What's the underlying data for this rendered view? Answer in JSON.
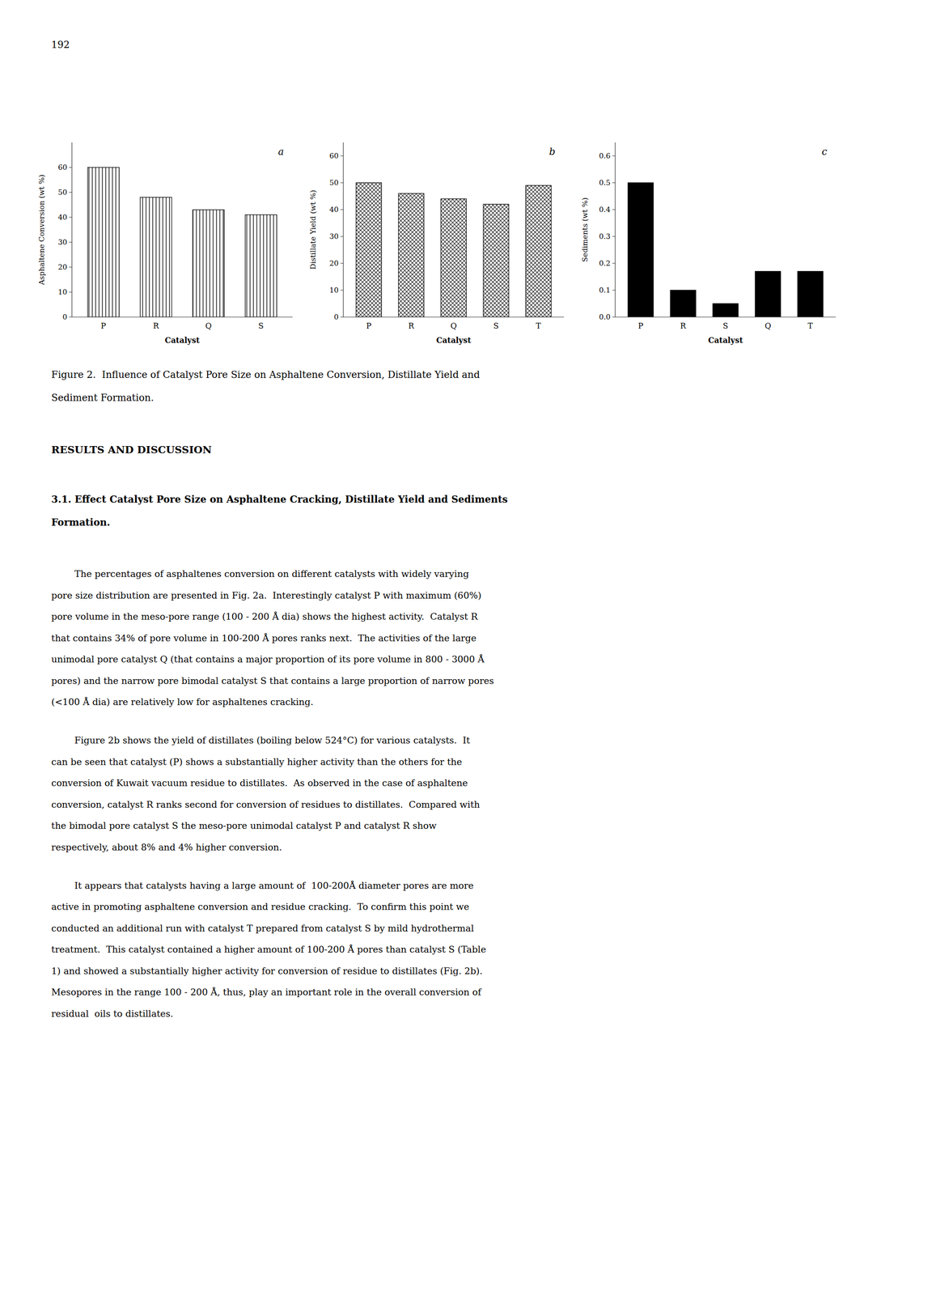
{
  "page_number": "192",
  "figure_caption": [
    "Figure 2.  Influence of Catalyst Pore Size on Asphaltene Conversion, Distillate Yield and",
    "Sediment Formation."
  ],
  "results_heading": "RESULTS AND DISCUSSION",
  "section_heading": [
    "3.1. Effect Catalyst Pore Size on Asphaltene Cracking, Distillate Yield and Sediments",
    "Formation."
  ],
  "paragraphs": [
    [
      "        The percentages of asphaltenes conversion on different catalysts with widely varying",
      "pore size distribution are presented in Fig. 2a.  Interestingly catalyst P with maximum (60%)",
      "pore volume in the meso-pore range (100 - 200 Å dia) shows the highest activity.  Catalyst R",
      "that contains 34% of pore volume in 100-200 Å pores ranks next.  The activities of the large",
      "unimodal pore catalyst Q (that contains a major proportion of its pore volume in 800 - 3000 Å",
      "pores) and the narrow pore bimodal catalyst S that contains a large proportion of narrow pores",
      "(<100 Å dia) are relatively low for asphaltenes cracking."
    ],
    [
      "        Figure 2b shows the yield of distillates (boiling below 524°C) for various catalysts.  It",
      "can be seen that catalyst (P) shows a substantially higher activity than the others for the",
      "conversion of Kuwait vacuum residue to distillates.  As observed in the case of asphaltene",
      "conversion, catalyst R ranks second for conversion of residues to distillates.  Compared with",
      "the bimodal pore catalyst S the meso-pore unimodal catalyst P and catalyst R show",
      "respectively, about 8% and 4% higher conversion."
    ],
    [
      "        It appears that catalysts having a large amount of  100-200Å diameter pores are more",
      "active in promoting asphaltene conversion and residue cracking.  To confirm this point we",
      "conducted an additional run with catalyst T prepared from catalyst S by mild hydrothermal",
      "treatment.  This catalyst contained a higher amount of 100-200 Å pores than catalyst S (Table",
      "1) and showed a substantially higher activity for conversion of residue to distillates (Fig. 2b).",
      "Mesopores in the range 100 - 200 Å, thus, play an important role in the overall conversion of",
      "residual  oils to distillates."
    ]
  ],
  "chart_data": [
    {
      "type": "bar",
      "annotation": "a",
      "categories": [
        "P",
        "R",
        "Q",
        "S"
      ],
      "values": [
        60,
        48,
        43,
        41
      ],
      "xlabel": "Catalyst",
      "ylabel": "Asphaltene Conversion (wt %)",
      "ylim": [
        0,
        70
      ],
      "yticks": [
        0,
        10,
        20,
        30,
        40,
        50,
        60
      ],
      "color": "#ffffff",
      "grid": false
    },
    {
      "type": "bar",
      "annotation": "b",
      "categories": [
        "P",
        "R",
        "Q",
        "S",
        "T"
      ],
      "values": [
        50,
        46,
        44,
        42,
        49
      ],
      "xlabel": "Catalyst",
      "ylabel": "Distillate Yield (wt %)",
      "ylim": [
        0,
        65
      ],
      "yticks": [
        0,
        10,
        20,
        30,
        40,
        50,
        60
      ],
      "color": "#ffffff",
      "grid": false
    },
    {
      "type": "bar",
      "annotation": "c",
      "categories": [
        "P",
        "R",
        "S",
        "Q",
        "T"
      ],
      "values": [
        0.5,
        0.1,
        0.05,
        0.17,
        0.17
      ],
      "xlabel": "Catalyst",
      "ylabel": "Sediments (wt %)",
      "ylim": [
        0,
        0.65
      ],
      "yticks": [
        {
          "value": 0,
          "label": "0.0"
        },
        0.1,
        0.2,
        0.3,
        0.4,
        0.5,
        0.6
      ],
      "color": "#000000",
      "grid": false
    }
  ]
}
